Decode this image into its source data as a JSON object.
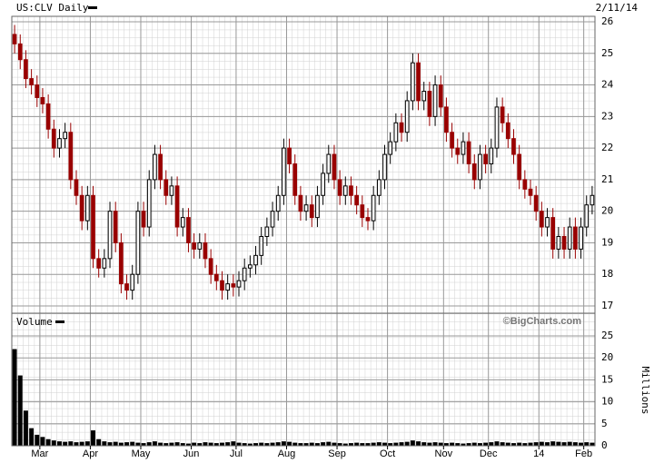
{
  "chart_data": {
    "type": "candlestick",
    "title": "US:CLV Daily",
    "date": "2/11/14",
    "credit": "©BigCharts.com",
    "up_color": "#000000",
    "down_color": "#990000",
    "xlim": [
      0,
      104
    ],
    "xticks": [
      {
        "value": 5,
        "label": "Mar"
      },
      {
        "value": 14,
        "label": "Apr"
      },
      {
        "value": 23,
        "label": "May"
      },
      {
        "value": 32,
        "label": "Jun"
      },
      {
        "value": 40,
        "label": "Jul"
      },
      {
        "value": 49,
        "label": "Aug"
      },
      {
        "value": 58,
        "label": "Sep"
      },
      {
        "value": 67,
        "label": "Oct"
      },
      {
        "value": 77,
        "label": "Nov"
      },
      {
        "value": 85,
        "label": "Dec"
      },
      {
        "value": 94,
        "label": "14"
      },
      {
        "value": 102,
        "label": "Feb"
      }
    ],
    "ylim": [
      17,
      26
    ],
    "yticks": [
      17,
      18,
      19,
      20,
      21,
      22,
      23,
      24,
      25,
      26
    ],
    "open": [
      25.6,
      25.3,
      24.8,
      24.2,
      24,
      23.6,
      23.4,
      22.6,
      22,
      22.3,
      22.5,
      21,
      20.5,
      19.7,
      20.5,
      18.5,
      18.2,
      18.5,
      20,
      19,
      17.7,
      17.5,
      18,
      20,
      19.5,
      21,
      21.8,
      21,
      20.5,
      20.8,
      19.5,
      19.8,
      19,
      18.8,
      19,
      18.5,
      18,
      17.8,
      17.5,
      17.7,
      17.6,
      17.8,
      18.2,
      18.3,
      18.6,
      19.2,
      19.5,
      20,
      20.5,
      22,
      21.5,
      20.5,
      20,
      20.2,
      19.8,
      20.5,
      21.2,
      21.8,
      21,
      20.5,
      20.8,
      20.5,
      20.2,
      19.8,
      19.7,
      20.5,
      21,
      21.8,
      22.2,
      22.8,
      22.5,
      23.5,
      24.7,
      23.5,
      23.8,
      23,
      24,
      23.3,
      22.5,
      22,
      21.8,
      22.2,
      21.5,
      21,
      21.8,
      21.5,
      22,
      23.3,
      22.8,
      22.3,
      21.8,
      21,
      20.7,
      20.5,
      20,
      19.5,
      19.8,
      18.8,
      19.2,
      18.8,
      19.5,
      18.8,
      19.5,
      20.2
    ],
    "high": [
      25.9,
      25.6,
      25.1,
      24.5,
      24.3,
      23.9,
      23.7,
      22.9,
      22.6,
      22.8,
      22.8,
      21.3,
      20.8,
      20.8,
      20.8,
      18.8,
      18.8,
      20.3,
      20.3,
      19.3,
      18,
      18.3,
      20.3,
      20.3,
      21.3,
      22.1,
      22.1,
      21.3,
      21.1,
      21.1,
      20.1,
      20.1,
      19.3,
      19.3,
      19.3,
      18.8,
      18.3,
      18.1,
      18,
      18,
      18.1,
      18.5,
      18.6,
      18.9,
      19.5,
      19.8,
      20.3,
      20.8,
      22.3,
      22.3,
      21.8,
      20.8,
      20.5,
      20.5,
      20.8,
      21.5,
      22.1,
      22.1,
      21.3,
      21.1,
      21.1,
      20.8,
      20.5,
      20.1,
      20.8,
      21.3,
      22.1,
      22.5,
      23.1,
      23.1,
      23.8,
      25,
      25,
      24.1,
      24.1,
      24.3,
      24.3,
      23.6,
      22.8,
      22.3,
      22.5,
      22.5,
      21.8,
      22.1,
      22.1,
      22.3,
      23.6,
      23.6,
      23.1,
      22.6,
      22.1,
      21.3,
      21,
      20.8,
      20.3,
      20.1,
      20.1,
      19.5,
      19.5,
      19.8,
      19.8,
      19.8,
      20.5,
      20.8
    ],
    "low": [
      25,
      24.5,
      23.9,
      23.7,
      23.3,
      23.1,
      22.3,
      21.7,
      21.7,
      22,
      20.7,
      20.2,
      19.4,
      19.4,
      18.2,
      17.9,
      17.9,
      18.2,
      18.7,
      17.4,
      17.2,
      17.2,
      17.7,
      19.2,
      19.2,
      20.7,
      20.7,
      20.2,
      20.2,
      19.2,
      19.2,
      18.7,
      18.5,
      18.5,
      18.2,
      17.7,
      17.5,
      17.2,
      17.2,
      17.3,
      17.3,
      17.5,
      17.9,
      18,
      18.3,
      18.9,
      19.2,
      19.7,
      20.2,
      21.2,
      20.2,
      19.7,
      19.7,
      19.5,
      19.5,
      20.2,
      20.9,
      20.7,
      20.2,
      20.2,
      20.2,
      19.9,
      19.5,
      19.4,
      19.4,
      20.2,
      20.7,
      21.5,
      21.9,
      22.2,
      22.2,
      23.2,
      23.2,
      23.2,
      22.7,
      22.7,
      23,
      22.2,
      21.7,
      21.5,
      21.5,
      21.2,
      20.7,
      20.7,
      21.2,
      21.2,
      21.7,
      22.5,
      22,
      21.5,
      20.7,
      20.4,
      20.2,
      19.7,
      19.2,
      19.2,
      18.5,
      18.5,
      18.5,
      18.5,
      18.5,
      18.5,
      19.2,
      19.9
    ],
    "close": [
      25.3,
      24.8,
      24.2,
      24,
      23.6,
      23.4,
      22.6,
      22,
      22.3,
      22.5,
      21,
      20.5,
      19.7,
      20.5,
      18.5,
      18.2,
      18.5,
      20,
      19,
      17.7,
      17.5,
      18,
      20,
      19.5,
      21,
      21.8,
      21,
      20.5,
      20.8,
      19.5,
      19.8,
      19,
      18.8,
      19,
      18.5,
      18,
      17.8,
      17.5,
      17.7,
      17.6,
      17.8,
      18.2,
      18.3,
      18.6,
      19.2,
      19.5,
      20,
      20.5,
      22,
      21.5,
      20.5,
      20,
      20.2,
      19.8,
      20.5,
      21.2,
      21.8,
      21,
      20.5,
      20.8,
      20.5,
      20.2,
      19.8,
      19.7,
      20.5,
      21,
      21.8,
      22.2,
      22.8,
      22.5,
      23.5,
      24.7,
      23.5,
      23.8,
      23,
      24,
      23.3,
      22.5,
      22,
      21.8,
      22.2,
      21.5,
      21,
      21.8,
      21.5,
      22,
      23.3,
      22.8,
      22.3,
      21.8,
      21,
      20.7,
      20.5,
      20,
      19.5,
      19.8,
      18.8,
      19.2,
      18.8,
      19.5,
      18.8,
      19.5,
      20.2,
      20.5
    ],
    "volume_label": "Volume",
    "volume_axis_label": "Millions",
    "volume_ylim": [
      0,
      25
    ],
    "volume_yticks": [
      0,
      5,
      10,
      15,
      20,
      25
    ],
    "volume": [
      22,
      16,
      8,
      4,
      2.5,
      2,
      1.5,
      1.2,
      1,
      0.9,
      1,
      0.8,
      0.9,
      1,
      3.5,
      1.5,
      1,
      0.8,
      0.9,
      0.7,
      0.8,
      0.9,
      0.7,
      0.6,
      0.8,
      1,
      0.7,
      0.6,
      0.7,
      0.8,
      0.6,
      0.5,
      0.7,
      0.6,
      0.8,
      0.7,
      0.6,
      0.7,
      0.8,
      1,
      0.7,
      0.6,
      0.5,
      0.6,
      0.7,
      0.6,
      0.7,
      0.8,
      1,
      0.9,
      0.7,
      0.6,
      0.6,
      0.7,
      0.6,
      0.8,
      0.9,
      0.7,
      0.6,
      0.5,
      0.6,
      0.7,
      0.6,
      0.6,
      0.7,
      0.8,
      0.7,
      0.6,
      0.7,
      0.8,
      0.9,
      1.2,
      1,
      0.8,
      0.7,
      0.8,
      0.7,
      0.6,
      0.7,
      0.6,
      0.5,
      0.6,
      0.7,
      0.6,
      0.7,
      0.8,
      1,
      0.8,
      0.7,
      0.6,
      0.7,
      0.6,
      0.7,
      0.8,
      0.9,
      0.8,
      1,
      0.9,
      0.8,
      0.9,
      0.8,
      0.7,
      0.8,
      0.7
    ]
  }
}
